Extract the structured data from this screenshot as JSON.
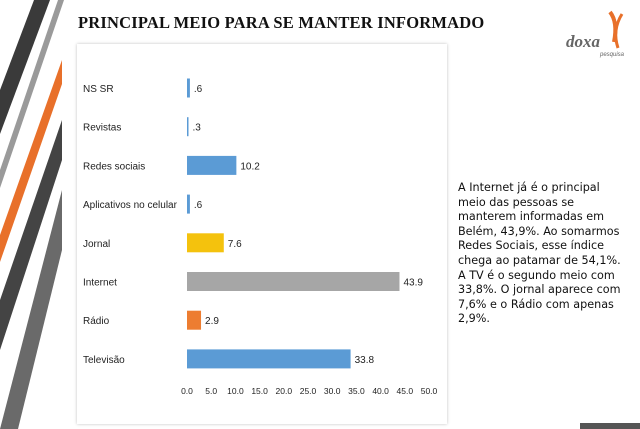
{
  "slide": {
    "title": "PRINCIPAL MEIO PARA SE MANTER INFORMADO",
    "logo": {
      "text": "doxa",
      "subtext": "pesquisa"
    },
    "note": "A Internet já é o principal meio das pessoas se manterem informadas em Belém, 43,9%. Ao somarmos Redes Sociais, esse índice chega ao patamar de 54,1%. A TV é o segundo meio com 33,8%. O jornal aparece com 7,6% e o Rádio com apenas 2,9%.",
    "colors": {
      "accent_orange": "#e8702a",
      "stripe_dark": "#3a3a3a",
      "stripe_gray": "#9a9a9a"
    }
  },
  "chart_data": {
    "type": "bar",
    "orientation": "horizontal",
    "title": "",
    "xlabel": "",
    "ylabel": "",
    "categories": [
      "NS SR",
      "Revistas",
      "Redes sociais",
      "Aplicativos no celular",
      "Jornal",
      "Internet",
      "Rádio",
      "Televisão"
    ],
    "values": [
      0.6,
      0.3,
      10.2,
      0.6,
      7.6,
      43.9,
      2.9,
      33.8
    ],
    "value_labels": [
      ".6",
      ".3",
      "10.2",
      ".6",
      "7.6",
      "43.9",
      "2.9",
      "33.8"
    ],
    "bar_colors": [
      "#5b9bd5",
      "#5b9bd5",
      "#5b9bd5",
      "#5b9bd5",
      "#f4c20d",
      "#a6a6a6",
      "#ed7d31",
      "#5b9bd5"
    ],
    "xlim": [
      0,
      50
    ],
    "xticks": [
      0,
      5,
      10,
      15,
      20,
      25,
      30,
      35,
      40,
      45,
      50
    ],
    "xtick_labels": [
      "0.0",
      "5.0",
      "10.0",
      "15.0",
      "20.0",
      "25.0",
      "30.0",
      "35.0",
      "40.0",
      "45.0",
      "50.0"
    ],
    "grid": false,
    "legend": "none"
  }
}
